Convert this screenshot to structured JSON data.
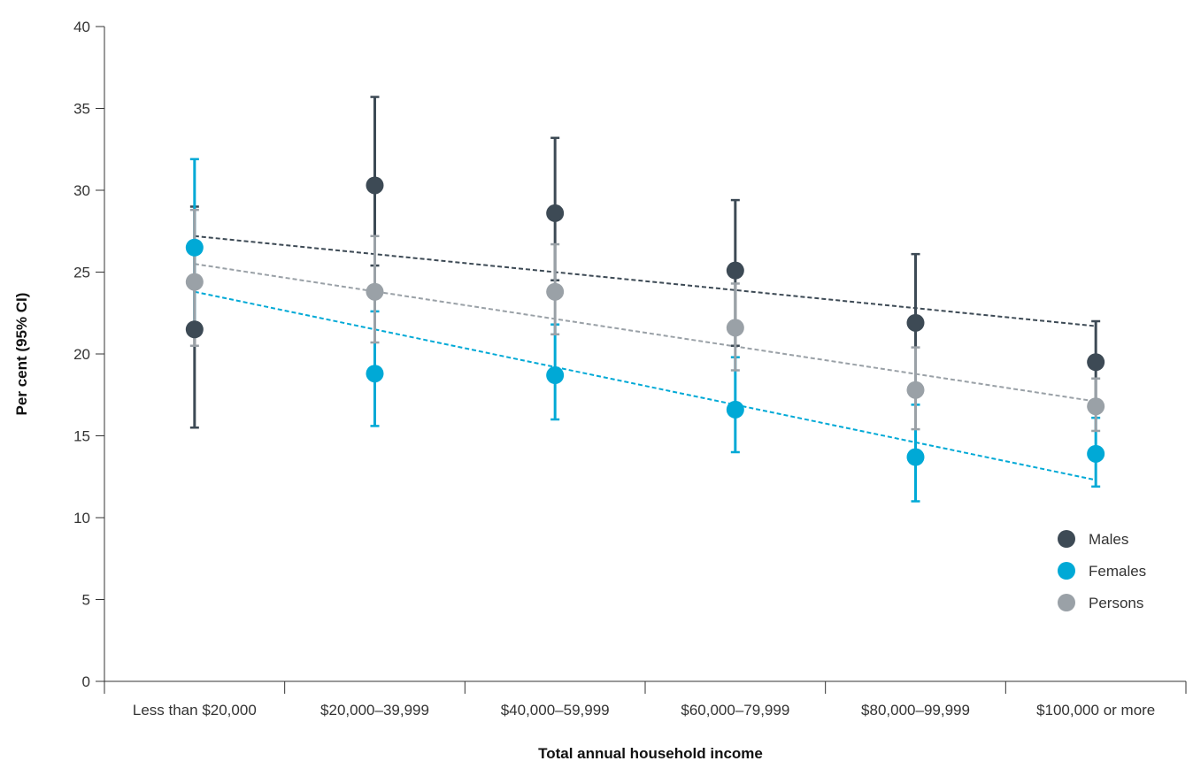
{
  "chart_data": {
    "type": "scatter",
    "xlabel": "Total annual household income",
    "ylabel": "Per cent (95% CI)",
    "categories": [
      "Less than $20,000",
      "$20,000–39,999",
      "$40,000–59,999",
      "$60,000–79,999",
      "$80,000–99,999",
      "$100,000 or more"
    ],
    "ylim": [
      0,
      40
    ],
    "yticks": [
      0,
      5,
      10,
      15,
      20,
      25,
      30,
      35,
      40
    ],
    "grid": false,
    "legend_position": "bottom-right",
    "series": [
      {
        "name": "Males",
        "color": "#3d4a55",
        "values": [
          21.5,
          30.3,
          28.6,
          25.1,
          21.9,
          19.5
        ],
        "ci_low": [
          15.5,
          25.4,
          24.5,
          20.5,
          17.6,
          17.1
        ],
        "ci_high": [
          29.0,
          35.7,
          33.2,
          29.4,
          26.1,
          22.0
        ],
        "trend": [
          27.2,
          21.7
        ]
      },
      {
        "name": "Females",
        "color": "#00a9d6",
        "values": [
          26.5,
          18.8,
          18.7,
          16.6,
          13.7,
          13.9
        ],
        "ci_low": [
          21.8,
          15.6,
          16.0,
          14.0,
          11.0,
          11.9
        ],
        "ci_high": [
          31.9,
          22.6,
          21.8,
          19.8,
          16.9,
          16.1
        ],
        "trend": [
          23.8,
          12.3
        ]
      },
      {
        "name": "Persons",
        "color": "#9aa1a7",
        "values": [
          24.4,
          23.8,
          23.8,
          21.6,
          17.8,
          16.8
        ],
        "ci_low": [
          20.5,
          20.7,
          21.2,
          19.0,
          15.4,
          15.3
        ],
        "ci_high": [
          28.8,
          27.2,
          26.7,
          24.3,
          20.4,
          18.5
        ],
        "trend": [
          25.5,
          17.1
        ]
      }
    ]
  }
}
